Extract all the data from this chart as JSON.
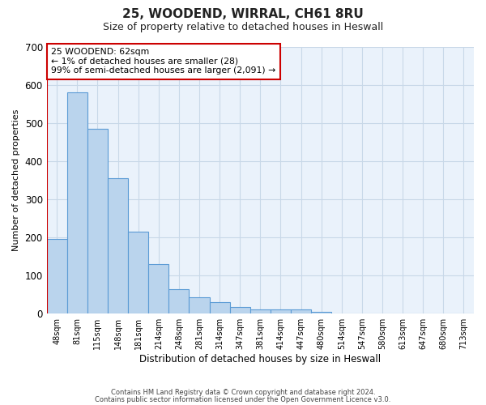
{
  "title": "25, WOODEND, WIRRAL, CH61 8RU",
  "subtitle": "Size of property relative to detached houses in Heswall",
  "xlabel": "Distribution of detached houses by size in Heswall",
  "ylabel": "Number of detached properties",
  "bar_labels": [
    "48sqm",
    "81sqm",
    "115sqm",
    "148sqm",
    "181sqm",
    "214sqm",
    "248sqm",
    "281sqm",
    "314sqm",
    "347sqm",
    "381sqm",
    "414sqm",
    "447sqm",
    "480sqm",
    "514sqm",
    "547sqm",
    "580sqm",
    "613sqm",
    "647sqm",
    "680sqm",
    "713sqm"
  ],
  "bar_heights": [
    195,
    580,
    485,
    355,
    215,
    130,
    65,
    43,
    30,
    18,
    10,
    10,
    10,
    5,
    0,
    0,
    0,
    0,
    0,
    0,
    0
  ],
  "bar_color": "#bad4ed",
  "bar_edge_color": "#5b9bd5",
  "marker_line_color": "#cc0000",
  "annotation_text": "25 WOODEND: 62sqm\n← 1% of detached houses are smaller (28)\n99% of semi-detached houses are larger (2,091) →",
  "annotation_box_color": "#ffffff",
  "annotation_box_edge": "#cc0000",
  "ylim": [
    0,
    700
  ],
  "yticks": [
    0,
    100,
    200,
    300,
    400,
    500,
    600,
    700
  ],
  "footer_line1": "Contains HM Land Registry data © Crown copyright and database right 2024.",
  "footer_line2": "Contains public sector information licensed under the Open Government Licence v3.0.",
  "background_color": "#ffffff",
  "grid_color": "#c8d8e8",
  "plot_bg_color": "#eaf2fb"
}
